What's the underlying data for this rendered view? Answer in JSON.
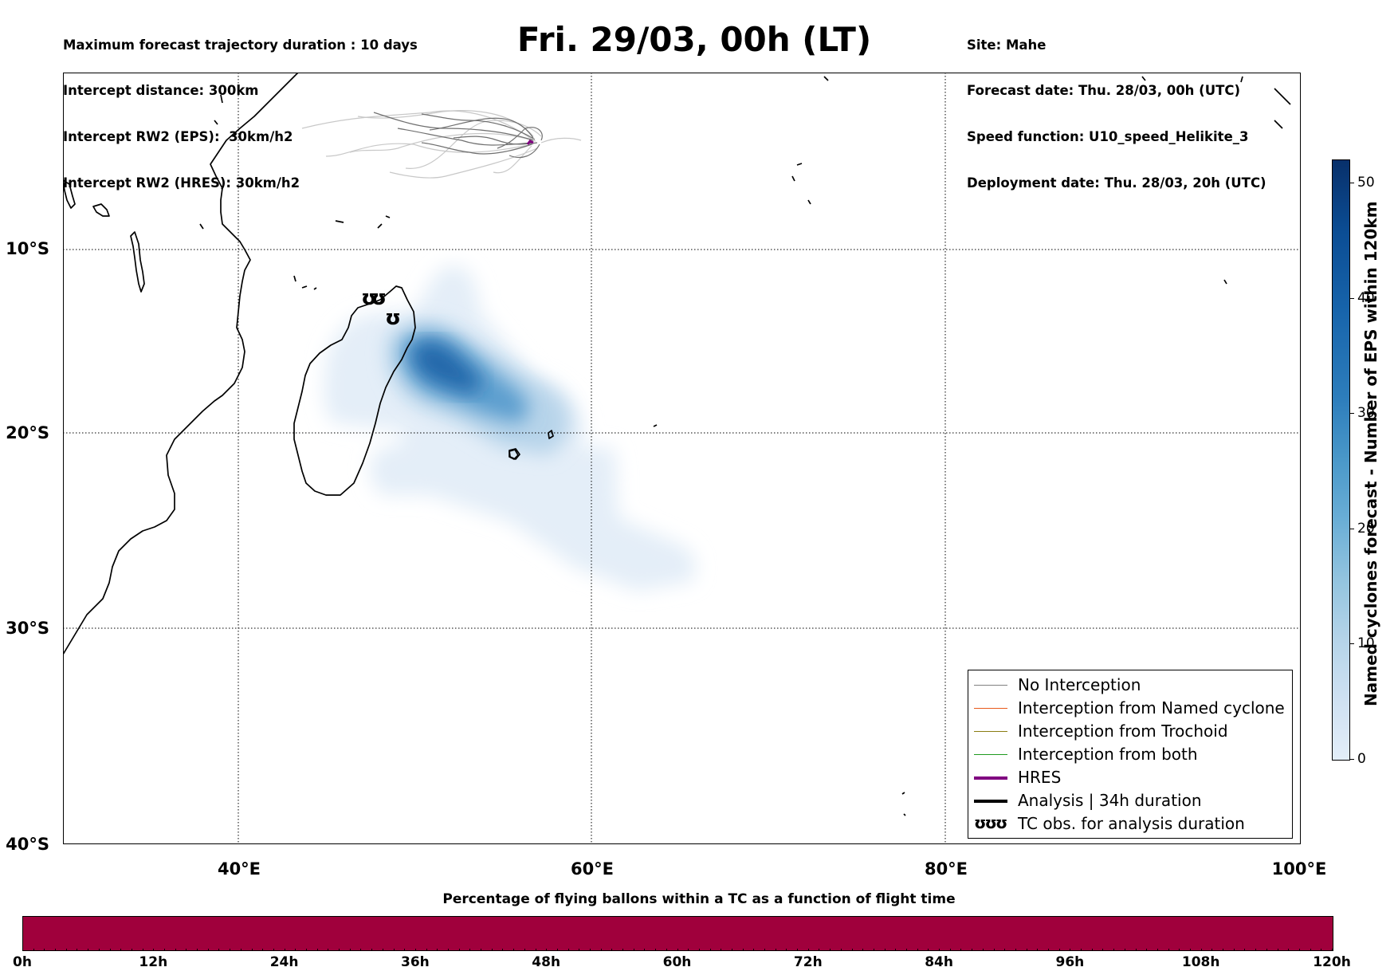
{
  "header": {
    "left_info": [
      "Maximum forecast trajectory duration : 10 days",
      "Intercept distance: 300km",
      "Intercept RW2 (EPS):  30km/h2",
      "Intercept RW2 (HRES): 30km/h2"
    ],
    "title": "Fri. 29/03, 00h (LT)",
    "right_info": [
      "Site: Mahe",
      "Forecast date: Thu. 28/03, 00h (UTC)",
      "Speed function: U10_speed_Helikite_3",
      "Deployment date: Thu. 28/03, 20h (UTC)"
    ]
  },
  "map": {
    "lat_labels": [
      "10°S",
      "20°S",
      "30°S",
      "40°S"
    ],
    "lon_labels": [
      "40°E",
      "60°E",
      "80°E",
      "100°E"
    ],
    "land_color": "#000000",
    "gridline_style": "dotted"
  },
  "legend": {
    "items": [
      {
        "label": "No Interception",
        "color": "#808080"
      },
      {
        "label": "Interception from Named cyclone",
        "color": "#e8591a"
      },
      {
        "label": "Interception from Trochoid",
        "color": "#8b7d12"
      },
      {
        "label": "Interception from both",
        "color": "#1f9a1f"
      },
      {
        "label": "HRES",
        "color": "#800080"
      },
      {
        "label": "Analysis | 34h duration",
        "color": "#000000"
      },
      {
        "label": "TC obs. for analysis duration",
        "color": "#000000"
      }
    ],
    "tc_symbol": "ʊʊʊ"
  },
  "colorbar": {
    "label": "Named cyclones forecast - Number of EPS within 120km",
    "ticks": [
      "0",
      "10",
      "20",
      "30",
      "40",
      "50"
    ],
    "max": 52,
    "colormap": "Blues"
  },
  "bottom": {
    "title": "Percentage of flying ballons within a TC as a function of flight time",
    "ticks": [
      "0h",
      "12h",
      "24h",
      "36h",
      "48h",
      "60h",
      "72h",
      "84h",
      "96h",
      "108h",
      "120h"
    ],
    "bar_color": "#a0003c"
  }
}
